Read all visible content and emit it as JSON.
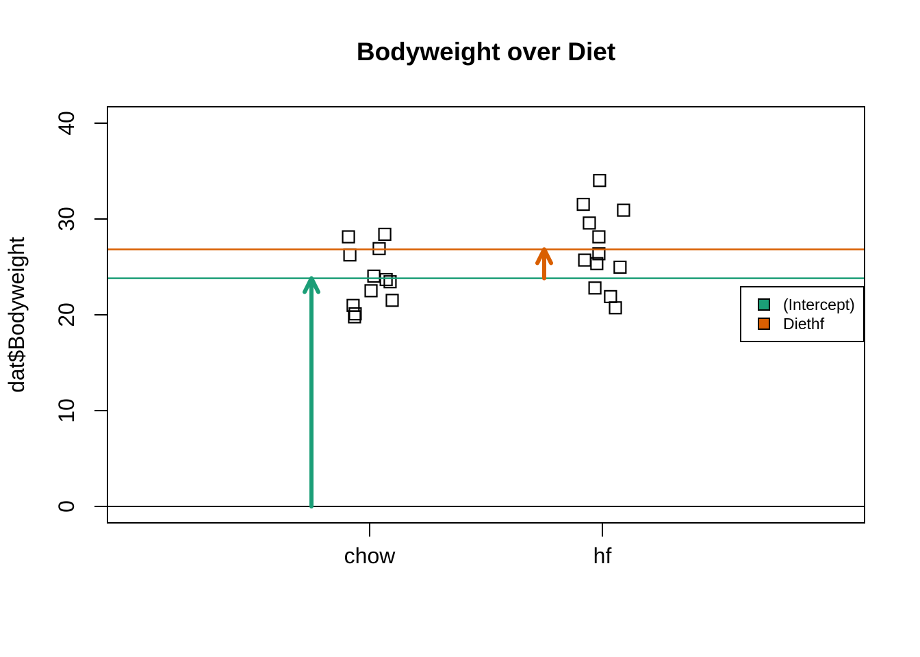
{
  "chart_data": {
    "type": "scatter",
    "title": "Bodyweight over Diet",
    "xlabel": "",
    "ylabel": "dat$Bodyweight",
    "marker": "open-square",
    "grid": false,
    "y_ticks": [
      0,
      10,
      20,
      30,
      40
    ],
    "y_range": [
      -1.7,
      41.7
    ],
    "x_range": [
      -0.12,
      3.12
    ],
    "x_categories": [
      {
        "label": "chow",
        "position": 1
      },
      {
        "label": "hf",
        "position": 2
      }
    ],
    "series": [
      {
        "name": "chow",
        "points": [
          {
            "x": 0.909,
            "y": 28.14
          },
          {
            "x": 1.065,
            "y": 28.4
          },
          {
            "x": 1.041,
            "y": 26.91
          },
          {
            "x": 0.915,
            "y": 26.25
          },
          {
            "x": 1.018,
            "y": 24.04
          },
          {
            "x": 1.071,
            "y": 23.68
          },
          {
            "x": 1.088,
            "y": 23.45
          },
          {
            "x": 1.006,
            "y": 22.51
          },
          {
            "x": 1.097,
            "y": 21.51
          },
          {
            "x": 0.929,
            "y": 20.98
          },
          {
            "x": 0.938,
            "y": 20.1
          },
          {
            "x": 0.935,
            "y": 19.79
          }
        ]
      },
      {
        "name": "hf",
        "points": [
          {
            "x": 1.988,
            "y": 34.02
          },
          {
            "x": 1.918,
            "y": 31.53
          },
          {
            "x": 2.091,
            "y": 30.92
          },
          {
            "x": 1.944,
            "y": 29.58
          },
          {
            "x": 1.985,
            "y": 28.14
          },
          {
            "x": 1.985,
            "y": 26.37
          },
          {
            "x": 1.924,
            "y": 25.71
          },
          {
            "x": 1.976,
            "y": 25.34
          },
          {
            "x": 2.076,
            "y": 24.97
          },
          {
            "x": 1.968,
            "y": 22.8
          },
          {
            "x": 2.035,
            "y": 21.9
          },
          {
            "x": 2.056,
            "y": 20.73
          }
        ]
      }
    ],
    "reference_lines": [
      {
        "name": "zero-line",
        "y": 0,
        "color": "#000000"
      },
      {
        "name": "intercept-line",
        "y": 23.81,
        "color": "#1B9E77"
      },
      {
        "name": "diethf-line",
        "y": 26.83,
        "color": "#D95F02"
      }
    ],
    "arrows": [
      {
        "name": "intercept-arrow",
        "x": 0.75,
        "y_from": 0,
        "y_to": 23.81,
        "color": "#1B9E77"
      },
      {
        "name": "diethf-arrow",
        "x": 1.75,
        "y_from": 23.81,
        "y_to": 26.83,
        "color": "#D95F02"
      }
    ],
    "legend": {
      "position": "right",
      "entries": [
        {
          "label": "(Intercept)",
          "color": "#1B9E77"
        },
        {
          "label": "Diethf",
          "color": "#D95F02"
        }
      ]
    }
  }
}
